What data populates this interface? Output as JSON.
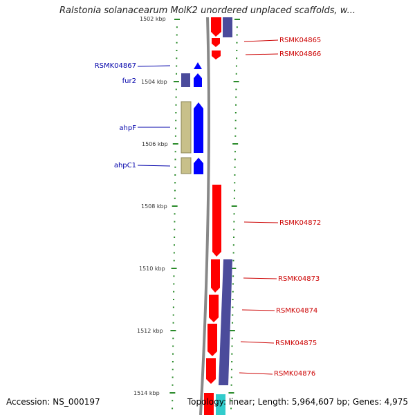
{
  "title": "Ralstonia solanacearum MolK2 unordered unplaced scaffolds, w...",
  "footer": {
    "accession": "Accession: NS_000197",
    "summary": "Topology: linear; Length: 5,964,607 bp; Genes: 4,975"
  },
  "axis_ticks": [
    "1502 kbp",
    "1504 kbp",
    "1506 kbp",
    "1508 kbp",
    "1510 kbp",
    "1512 kbp",
    "1514 kbp"
  ],
  "colors": {
    "forward_gene": "#ff0000",
    "forward_gene_dark": "#0000ff",
    "reverse_feature": "#4b4b9b",
    "ortholog_block": "#c8c08a",
    "label_blue": "#0000aa",
    "label_red": "#cc0000",
    "tick_green": "#2a8a2a",
    "backbone": "#888888",
    "cyan_feature": "#33cccc"
  },
  "left_labels": [
    "RSMK04867",
    "fur2",
    "ahpF",
    "ahpC1"
  ],
  "right_labels": [
    "RSMK04865",
    "RSMK04866",
    "RSMK04872",
    "RSMK04873",
    "RSMK04874",
    "RSMK04875",
    "RSMK04876"
  ]
}
